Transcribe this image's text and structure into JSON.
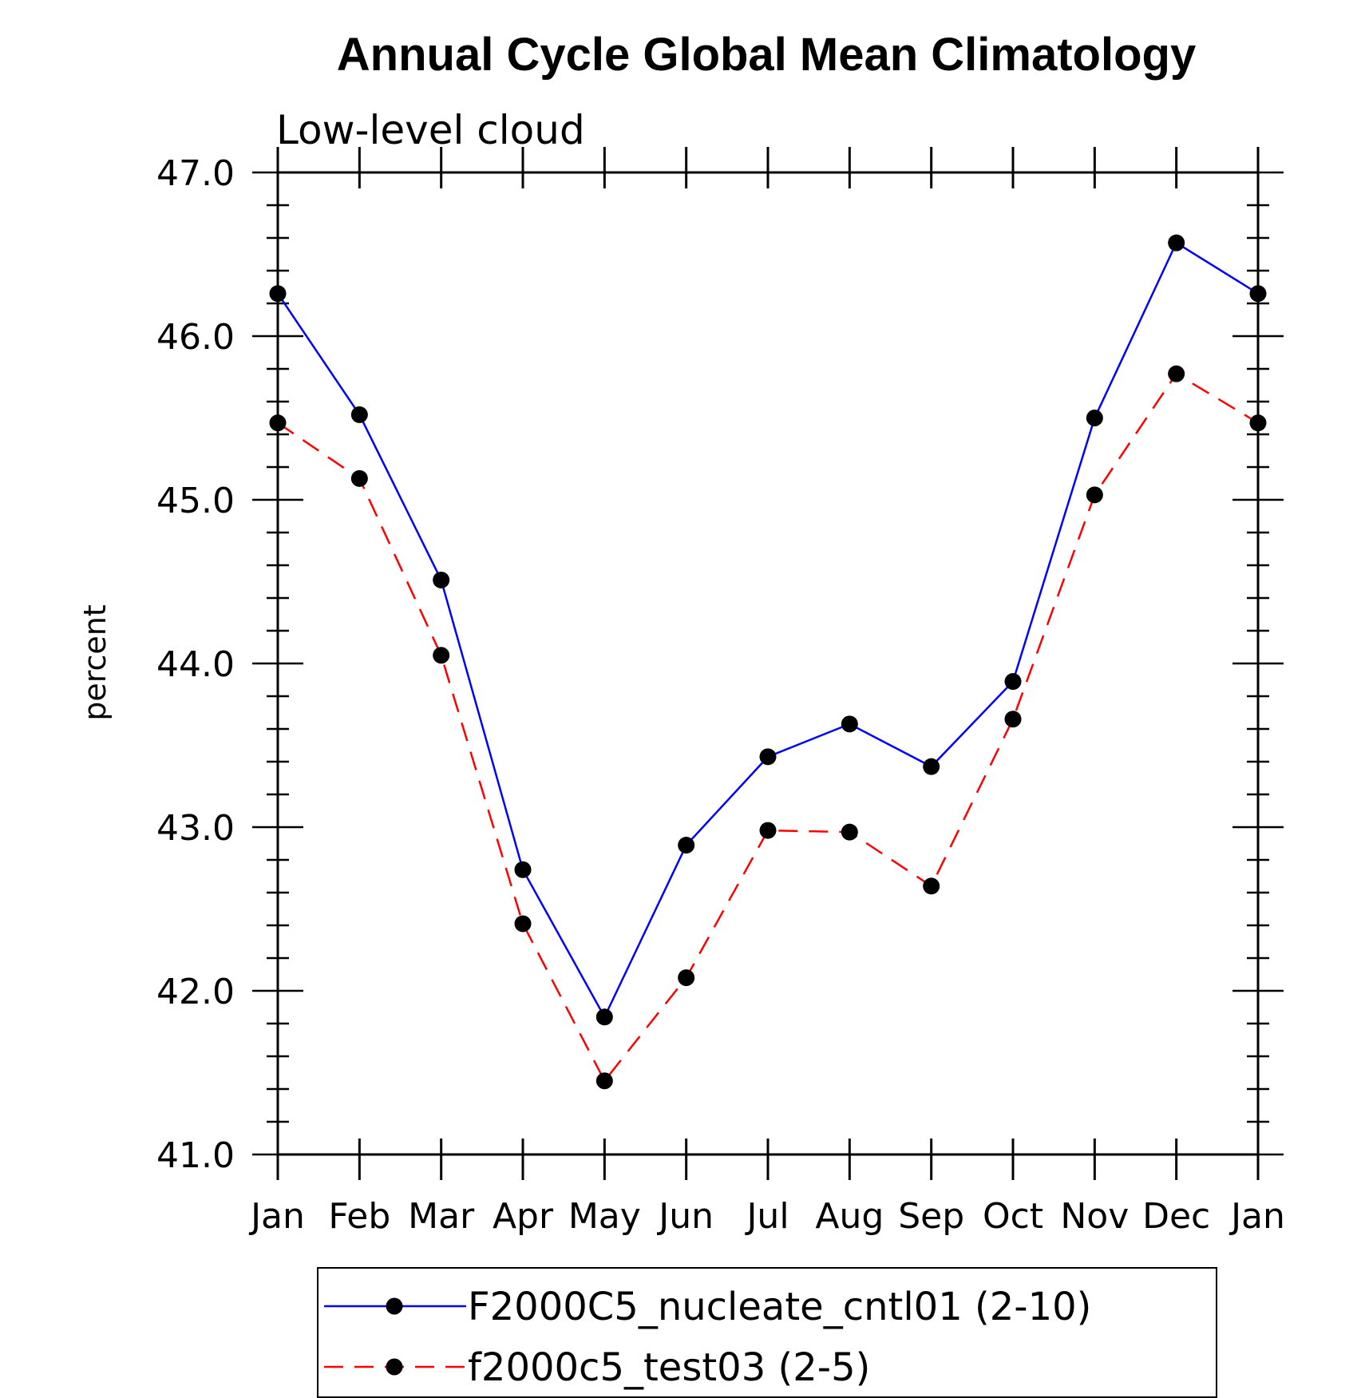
{
  "chart_data": {
    "type": "line",
    "title": "Annual Cycle Global Mean Climatology",
    "subtitle": "Low-level cloud",
    "xlabel": "",
    "ylabel": "percent",
    "categories": [
      "Jan",
      "Feb",
      "Mar",
      "Apr",
      "May",
      "Jun",
      "Jul",
      "Aug",
      "Sep",
      "Oct",
      "Nov",
      "Dec",
      "Jan"
    ],
    "ylim": [
      41.0,
      47.0
    ],
    "yticks": [
      "41.0",
      "42.0",
      "43.0",
      "44.0",
      "45.0",
      "46.0",
      "47.0"
    ],
    "grid": false,
    "legend_position": "bottom",
    "series": [
      {
        "name": "F2000C5_nucleate_cntl01 (2-10)",
        "color": "#0000ff",
        "style": "solid",
        "marker": "filled-circle",
        "values": [
          46.26,
          45.52,
          44.51,
          42.74,
          41.84,
          42.89,
          43.43,
          43.63,
          43.37,
          43.89,
          45.5,
          46.57,
          46.26
        ]
      },
      {
        "name": "f2000c5_test03 (2-5)",
        "color": "#ff0000",
        "style": "dashed",
        "marker": "filled-circle",
        "values": [
          45.47,
          45.13,
          44.05,
          42.41,
          41.45,
          42.08,
          42.98,
          42.97,
          42.64,
          43.66,
          45.03,
          45.77,
          45.47
        ]
      }
    ]
  }
}
